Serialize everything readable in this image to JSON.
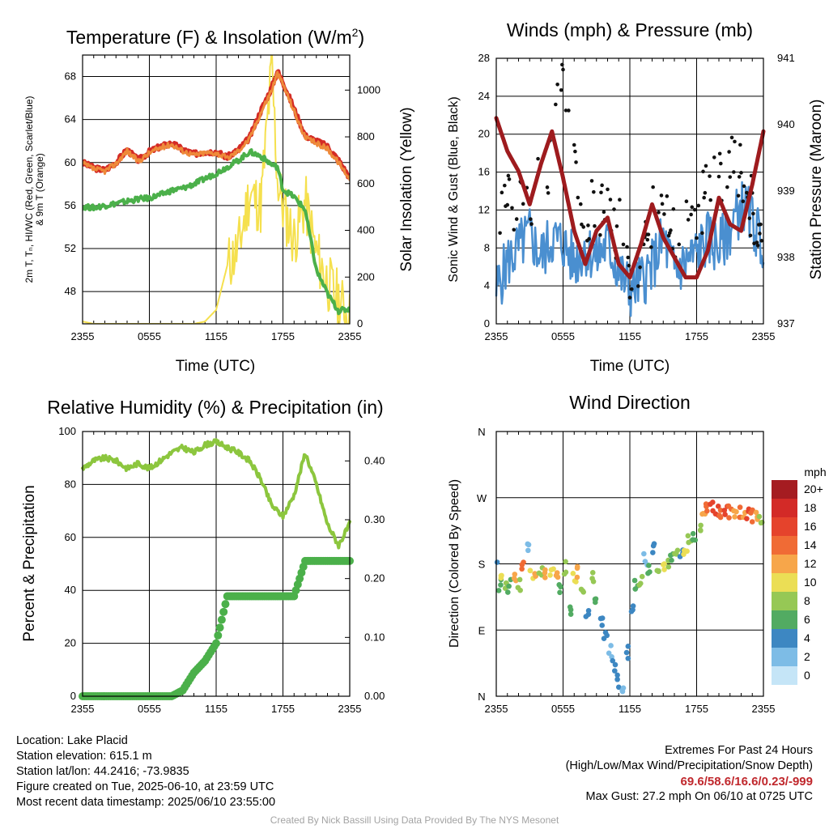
{
  "charts": {
    "temp": {
      "title_main": "Temperature (F) & Insolation (W/m",
      "title_sup": "2",
      "title_end": ")",
      "ylabel_lines": [
        "2m T, Tₙ, HI/WC (Red, Green, Scarlet/Blue)",
        "& 9m T (Orange)"
      ],
      "ylabel_right": "Solar Insolation (Yellow)",
      "xlabel": "Time (UTC)"
    },
    "wind": {
      "title": "Winds (mph) & Pressure (mb)",
      "ylabel": "Sonic Wind & Gust (Blue, Black)",
      "ylabel_right": "Station Pressure (Maroon)",
      "xlabel": "Time (UTC)"
    },
    "rh": {
      "title": "Relative Humidity (%) & Precipitation (in)",
      "ylabel": "Percent & Precipitation"
    },
    "dir": {
      "title": "Wind Direction",
      "ylabel": "Direction (Colored By Speed)",
      "legend_title": "mph"
    }
  },
  "chart_data": [
    {
      "type": "line",
      "title": "Temperature (F) & Insolation (W/m2)",
      "xlabel": "Time (UTC)",
      "x_ticks": [
        "2355",
        "0555",
        "1155",
        "1755",
        "2355"
      ],
      "ylim": [
        45,
        70
      ],
      "y_ticks": [
        48,
        52,
        56,
        60,
        64,
        68
      ],
      "y2lim": [
        0,
        1150
      ],
      "y2_ticks": [
        0,
        200,
        400,
        600,
        800,
        1000
      ],
      "x_hours": [
        0,
        1,
        2,
        3,
        4,
        5,
        6,
        7,
        8,
        9,
        10,
        11,
        12,
        13,
        14,
        15,
        16,
        17,
        17.5,
        18,
        19,
        20,
        21,
        22,
        23,
        24
      ],
      "series": [
        {
          "name": "2m T",
          "color": "#d42b25",
          "axis": "left",
          "values": [
            60.0,
            59.5,
            59.3,
            60.0,
            61.2,
            60.2,
            61.0,
            61.5,
            61.8,
            61.2,
            60.8,
            61.0,
            61.0,
            60.5,
            61.2,
            62.3,
            64.8,
            67.0,
            68.5,
            67.5,
            65.0,
            62.5,
            62.0,
            61.5,
            60.2,
            58.6
          ]
        },
        {
          "name": "Td",
          "color": "#4bb04a",
          "axis": "left",
          "values": [
            55.9,
            55.8,
            56.0,
            56.2,
            56.4,
            56.6,
            56.7,
            57.0,
            57.4,
            57.6,
            58.0,
            58.5,
            59.0,
            59.6,
            60.2,
            61.0,
            60.6,
            59.8,
            59.6,
            57.5,
            56.8,
            55.6,
            50.0,
            47.8,
            46.2,
            46.4
          ]
        },
        {
          "name": "9m T",
          "color": "#ee8a3a",
          "axis": "left",
          "values": [
            59.9,
            59.4,
            59.2,
            59.9,
            61.1,
            60.1,
            60.9,
            61.4,
            61.7,
            61.1,
            60.7,
            60.9,
            60.9,
            60.4,
            61.1,
            62.2,
            64.6,
            66.8,
            68.3,
            67.3,
            64.8,
            62.3,
            61.8,
            61.3,
            60.0,
            58.5
          ]
        },
        {
          "name": "Insolation",
          "color": "#f5e04e",
          "axis": "right",
          "values": [
            10,
            0,
            0,
            0,
            0,
            0,
            0,
            0,
            0,
            0,
            0,
            10,
            60,
            250,
            320,
            560,
            500,
            1100,
            620,
            500,
            360,
            520,
            300,
            180,
            100,
            20
          ]
        }
      ]
    },
    {
      "type": "line",
      "title": "Winds (mph) & Pressure (mb)",
      "xlabel": "Time (UTC)",
      "x_ticks": [
        "2355",
        "0555",
        "1155",
        "1755",
        "2355"
      ],
      "ylim": [
        0,
        28
      ],
      "y_ticks": [
        0,
        4,
        8,
        12,
        16,
        20,
        24,
        28
      ],
      "y2lim": [
        937,
        941
      ],
      "y2_ticks": [
        937,
        938,
        939,
        940,
        941
      ],
      "x_hours": [
        0,
        1,
        2,
        3,
        4,
        5,
        6,
        7,
        8,
        9,
        10,
        11,
        12,
        13,
        14,
        15,
        16,
        17,
        18,
        19,
        20,
        21,
        22,
        23,
        24
      ],
      "series": [
        {
          "name": "Sonic Wind",
          "color": "#4a8fd0",
          "axis": "left",
          "values": [
            3.5,
            6.5,
            8.0,
            9.5,
            7.0,
            9.0,
            8.5,
            6.5,
            8.0,
            7.0,
            8.5,
            5.5,
            3.5,
            4.5,
            6.0,
            9.0,
            5.5,
            6.5,
            7.5,
            9.0,
            8.0,
            10.0,
            12.5,
            11.0,
            8.0
          ]
        },
        {
          "name": "Gust",
          "color": "#111111",
          "axis": "left",
          "values": [
            8,
            15,
            12,
            13,
            15,
            18,
            26,
            17,
            12,
            13,
            11,
            10,
            6,
            7,
            11,
            12,
            9,
            10,
            12,
            14,
            15,
            18,
            16,
            12,
            10
          ]
        },
        {
          "name": "Station Pressure",
          "color": "#9e1b1e",
          "axis": "right",
          "values": [
            940.1,
            939.6,
            939.3,
            938.8,
            939.4,
            939.9,
            939.2,
            938.4,
            937.9,
            938.4,
            938.6,
            937.9,
            937.7,
            938.2,
            938.8,
            938.3,
            938.0,
            937.7,
            937.7,
            938.1,
            938.9,
            938.5,
            938.4,
            939.1,
            939.9
          ]
        }
      ]
    },
    {
      "type": "line",
      "title": "Relative Humidity (%) & Precipitation (in)",
      "x_ticks": [
        "2355",
        "0555",
        "1155",
        "1755",
        "2355"
      ],
      "ylim": [
        0,
        100
      ],
      "y_ticks": [
        0,
        20,
        40,
        60,
        80,
        100
      ],
      "y2lim": [
        0,
        0.45
      ],
      "y2_ticks": [
        0.0,
        0.1,
        0.2,
        0.3,
        0.4
      ],
      "y2_tick_labels": [
        "0.00",
        "0.10",
        "0.20",
        "0.30",
        "0.40"
      ],
      "x_hours": [
        0,
        1,
        2,
        3,
        4,
        5,
        6,
        7,
        8,
        9,
        10,
        11,
        12,
        13,
        14,
        15,
        16,
        17,
        18,
        19,
        20,
        21,
        22,
        23,
        24
      ],
      "series": [
        {
          "name": "Relative Humidity",
          "color": "#8cc63e",
          "axis": "left",
          "values": [
            86,
            89,
            90,
            89,
            86,
            88,
            86,
            89,
            92,
            94,
            92,
            95,
            96,
            94,
            92,
            89,
            82,
            72,
            68,
            76,
            92,
            80,
            65,
            57,
            65
          ]
        },
        {
          "name": "Precipitation",
          "color": "#4bb04a",
          "axis": "right",
          "values": [
            0.0,
            0.0,
            0.0,
            0.0,
            0.0,
            0.0,
            0.0,
            0.0,
            0.0,
            0.01,
            0.04,
            0.06,
            0.09,
            0.17,
            0.17,
            0.17,
            0.17,
            0.17,
            0.17,
            0.17,
            0.23,
            0.23,
            0.23,
            0.23,
            0.23
          ]
        }
      ]
    },
    {
      "type": "scatter",
      "title": "Wind Direction",
      "ylabel": "Direction (Colored By Speed)",
      "x_ticks": [
        "2355",
        "0555",
        "1155",
        "1755",
        "2355"
      ],
      "y_ticks": [
        "N",
        "E",
        "S",
        "W",
        "N"
      ],
      "ylim": [
        0,
        360
      ],
      "colorbar": {
        "title": "mph",
        "labels": [
          "20+",
          "18",
          "16",
          "14",
          "12",
          "10",
          "8",
          "6",
          "4",
          "2",
          "0"
        ],
        "colors": [
          "#a51c21",
          "#d32a27",
          "#e5432c",
          "#f06b35",
          "#f7a64a",
          "#ebde55",
          "#96c855",
          "#52ab62",
          "#3d87c2",
          "#7dbce6",
          "#c5e5f7"
        ]
      },
      "points": [
        {
          "x": 0.1,
          "dir": 180,
          "speed": 4
        },
        {
          "x": 0.3,
          "dir": 150,
          "speed": 6
        },
        {
          "x": 0.5,
          "dir": 160,
          "speed": 10
        },
        {
          "x": 0.8,
          "dir": 155,
          "speed": 8
        },
        {
          "x": 1.2,
          "dir": 150,
          "speed": 6
        },
        {
          "x": 1.6,
          "dir": 160,
          "speed": 12
        },
        {
          "x": 2.0,
          "dir": 150,
          "speed": 8
        },
        {
          "x": 2.4,
          "dir": 175,
          "speed": 14
        },
        {
          "x": 2.8,
          "dir": 200,
          "speed": 2
        },
        {
          "x": 3.2,
          "dir": 165,
          "speed": 10
        },
        {
          "x": 3.6,
          "dir": 160,
          "speed": 12
        },
        {
          "x": 4.0,
          "dir": 170,
          "speed": 8
        },
        {
          "x": 4.5,
          "dir": 170,
          "speed": 12
        },
        {
          "x": 5.0,
          "dir": 165,
          "speed": 10
        },
        {
          "x": 5.4,
          "dir": 160,
          "speed": 12
        },
        {
          "x": 5.8,
          "dir": 145,
          "speed": 6
        },
        {
          "x": 6.2,
          "dir": 175,
          "speed": 8
        },
        {
          "x": 6.6,
          "dir": 120,
          "speed": 6
        },
        {
          "x": 7.0,
          "dir": 160,
          "speed": 10
        },
        {
          "x": 7.4,
          "dir": 170,
          "speed": 12
        },
        {
          "x": 7.8,
          "dir": 150,
          "speed": 8
        },
        {
          "x": 8.2,
          "dir": 110,
          "speed": 4
        },
        {
          "x": 8.6,
          "dir": 165,
          "speed": 8
        },
        {
          "x": 9.0,
          "dir": 130,
          "speed": 6
        },
        {
          "x": 9.4,
          "dir": 100,
          "speed": 4
        },
        {
          "x": 9.8,
          "dir": 80,
          "speed": 4
        },
        {
          "x": 10.2,
          "dir": 60,
          "speed": 2
        },
        {
          "x": 10.6,
          "dir": 40,
          "speed": 4
        },
        {
          "x": 11.0,
          "dir": 20,
          "speed": 4
        },
        {
          "x": 11.4,
          "dir": 10,
          "speed": 2
        },
        {
          "x": 11.8,
          "dir": 60,
          "speed": 4
        },
        {
          "x": 12.2,
          "dir": 120,
          "speed": 4
        },
        {
          "x": 12.6,
          "dir": 150,
          "speed": 6
        },
        {
          "x": 13.0,
          "dir": 160,
          "speed": 8
        },
        {
          "x": 13.4,
          "dir": 185,
          "speed": 2
        },
        {
          "x": 13.8,
          "dir": 175,
          "speed": 6
        },
        {
          "x": 14.2,
          "dir": 200,
          "speed": 4
        },
        {
          "x": 14.6,
          "dir": 170,
          "speed": 8
        },
        {
          "x": 15.0,
          "dir": 175,
          "speed": 10
        },
        {
          "x": 15.4,
          "dir": 180,
          "speed": 8
        },
        {
          "x": 15.8,
          "dir": 185,
          "speed": 6
        },
        {
          "x": 16.2,
          "dir": 195,
          "speed": 8
        },
        {
          "x": 16.6,
          "dir": 195,
          "speed": 4
        },
        {
          "x": 17.0,
          "dir": 200,
          "speed": 10
        },
        {
          "x": 17.4,
          "dir": 210,
          "speed": 8
        },
        {
          "x": 17.8,
          "dir": 220,
          "speed": 6
        },
        {
          "x": 18.2,
          "dir": 230,
          "speed": 8
        },
        {
          "x": 18.6,
          "dir": 250,
          "speed": 12
        },
        {
          "x": 19.0,
          "dir": 255,
          "speed": 14
        },
        {
          "x": 19.4,
          "dir": 255,
          "speed": 16
        },
        {
          "x": 19.8,
          "dir": 253,
          "speed": 16
        },
        {
          "x": 20.2,
          "dir": 252,
          "speed": 14
        },
        {
          "x": 20.6,
          "dir": 250,
          "speed": 16
        },
        {
          "x": 21.0,
          "dir": 250,
          "speed": 14
        },
        {
          "x": 21.4,
          "dir": 250,
          "speed": 12
        },
        {
          "x": 21.8,
          "dir": 248,
          "speed": 14
        },
        {
          "x": 22.2,
          "dir": 247,
          "speed": 12
        },
        {
          "x": 22.6,
          "dir": 248,
          "speed": 16
        },
        {
          "x": 23.0,
          "dir": 245,
          "speed": 14
        },
        {
          "x": 23.4,
          "dir": 245,
          "speed": 12
        },
        {
          "x": 23.8,
          "dir": 243,
          "speed": 8
        }
      ]
    }
  ],
  "info": {
    "location": "Location: Lake Placid",
    "elevation": "Station elevation: 615.1 m",
    "latlon": "Station lat/lon: 44.2416; -73.9835",
    "created": "Figure created on Tue, 2025-06-10, at 23:59 UTC",
    "recent": "Most recent data timestamp: 2025/06/10 23:55:00"
  },
  "extremes": {
    "title": "Extremes For Past 24 Hours",
    "subtitle": "(High/Low/Max Wind/Precipitation/Snow Depth)",
    "values": "69.6/58.6/16.6/0.23/-999",
    "gust": "Max Gust: 27.2 mph On 06/10 at 0725 UTC"
  },
  "credit": "Created By Nick Bassill Using Data Provided By The NYS Mesonet"
}
